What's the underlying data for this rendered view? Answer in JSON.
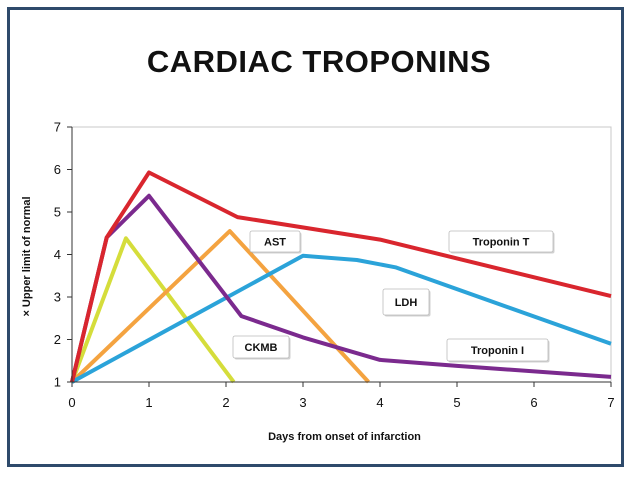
{
  "title": "CARDIAC TROPONINS",
  "chart_data": {
    "type": "line",
    "title": "CARDIAC TROPONINS",
    "xlabel": "Days from onset of infarction",
    "ylabel": "× Upper limit of normal",
    "xlim": [
      0,
      7
    ],
    "ylim": [
      1,
      7
    ],
    "xticks": [
      0,
      1,
      2,
      3,
      4,
      5,
      6,
      7
    ],
    "yticks": [
      1,
      2,
      3,
      4,
      5,
      6,
      7
    ],
    "legend_placement": "inline callouts",
    "series": [
      {
        "name": "Troponin T",
        "color": "#d9262e",
        "points": [
          [
            0,
            1
          ],
          [
            0.45,
            4.4
          ],
          [
            1,
            5.93
          ],
          [
            2.15,
            4.88
          ],
          [
            4,
            4.35
          ],
          [
            7,
            3.02
          ]
        ]
      },
      {
        "name": "Troponin I",
        "color": "#7b2a8e",
        "points": [
          [
            0,
            1
          ],
          [
            0.45,
            4.4
          ],
          [
            1,
            5.38
          ],
          [
            2.2,
            2.55
          ],
          [
            3,
            2.05
          ],
          [
            4,
            1.52
          ],
          [
            5,
            1.38
          ],
          [
            7,
            1.12
          ]
        ]
      },
      {
        "name": "LDH",
        "color": "#2ba3d9",
        "points": [
          [
            0,
            1
          ],
          [
            3,
            3.97
          ],
          [
            3.7,
            3.87
          ],
          [
            4.2,
            3.7
          ],
          [
            7,
            1.9
          ]
        ]
      },
      {
        "name": "AST",
        "color": "#f4a340",
        "points": [
          [
            0,
            1
          ],
          [
            2.05,
            4.55
          ],
          [
            3.85,
            1
          ]
        ]
      },
      {
        "name": "CKMB",
        "color": "#d5dd3b",
        "points": [
          [
            0,
            1
          ],
          [
            0.7,
            4.38
          ],
          [
            2.1,
            1
          ]
        ]
      }
    ],
    "callouts": [
      "AST",
      "Troponin T",
      "LDH",
      "CKMB",
      "Troponin I"
    ]
  }
}
